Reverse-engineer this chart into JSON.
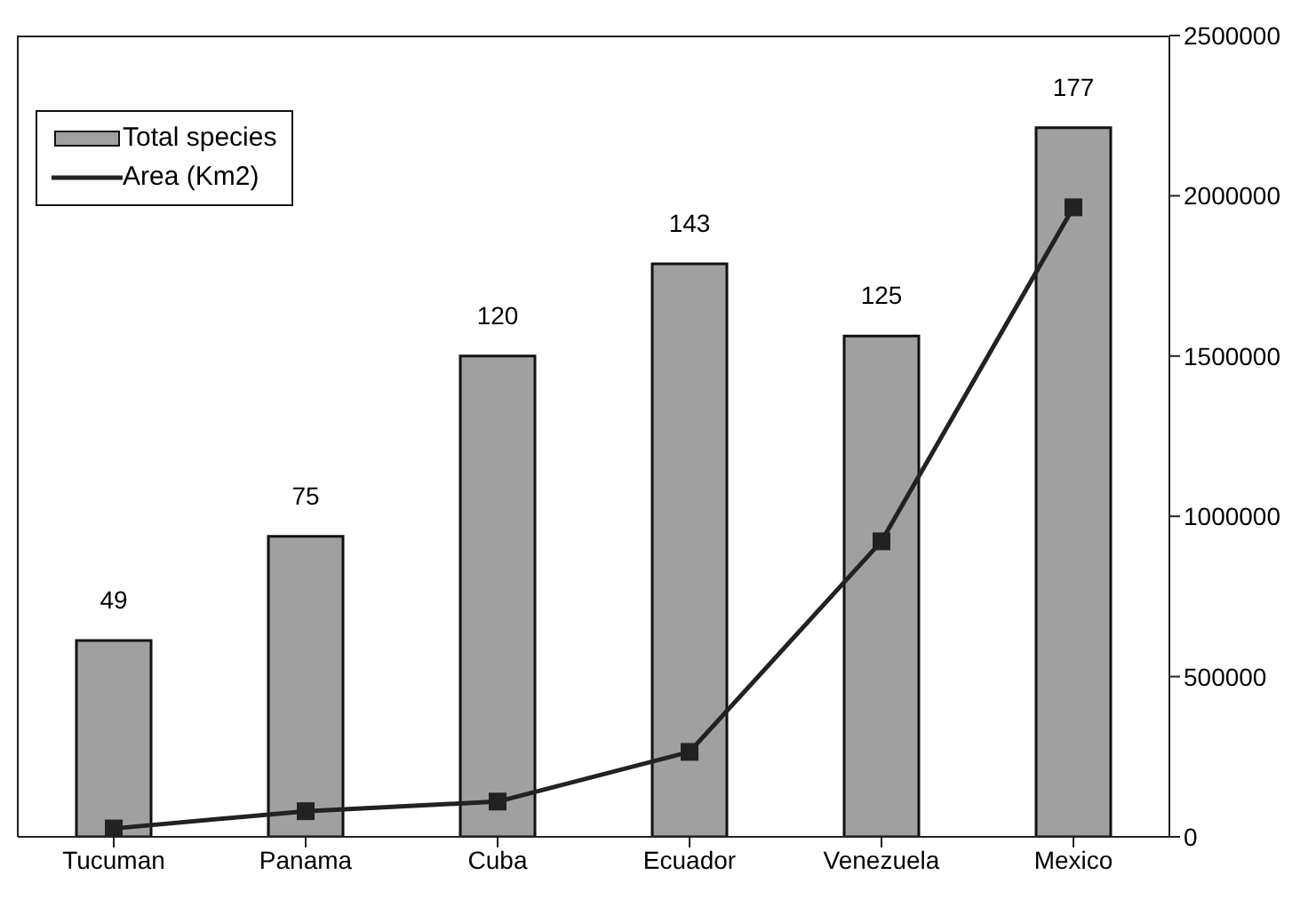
{
  "chart_data": {
    "type": "bar",
    "categories": [
      "Tucuman",
      "Panama",
      "Cuba",
      "Ecuador",
      "Venezuela",
      "Mexico"
    ],
    "series": [
      {
        "name": "Total species",
        "color": "#a0a0a0",
        "values": [
          49,
          75,
          120,
          143,
          125,
          177
        ],
        "value_labels": [
          "49",
          "75",
          "120",
          "143",
          "125",
          "177"
        ]
      },
      {
        "name": "Area (Km2)",
        "type": "line",
        "axis": "y2",
        "color": "#222222",
        "marker": "square",
        "values": [
          26000,
          80000,
          110000,
          265000,
          922000,
          1964000
        ]
      }
    ],
    "ylim": [
      0,
      200
    ],
    "y2lim": [
      0,
      2500000
    ],
    "y2ticks": [
      0,
      500000,
      1000000,
      1500000,
      2000000,
      2500000
    ],
    "legend": "top left"
  }
}
